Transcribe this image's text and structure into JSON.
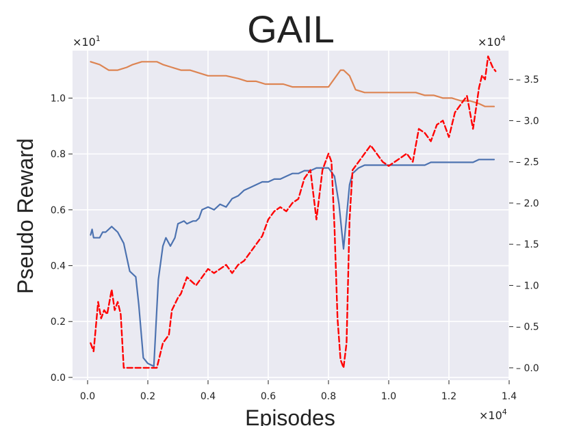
{
  "chart_data": {
    "type": "line",
    "title": "GAIL",
    "xlabel": "Episodes",
    "ylabel": "Pseudo Reward",
    "x_multiplier": "×10",
    "x_multiplier_exp": "4",
    "y_left_multiplier": "×10",
    "y_left_multiplier_exp": "1",
    "y_right_multiplier": "×10",
    "y_right_multiplier_exp": "4",
    "xlim": [
      -0.05,
      1.4
    ],
    "y_left_lim": [
      -0.01,
      1.17
    ],
    "y_right_lim": [
      -0.15,
      3.85
    ],
    "x_ticks": [
      0.0,
      0.2,
      0.4,
      0.6,
      0.8,
      1.0,
      1.2,
      1.4
    ],
    "x_tick_labels": [
      "0.0",
      "0.2",
      "0.4",
      "0.6",
      "0.8",
      "1.0",
      "1.2",
      "1.4"
    ],
    "y_left_ticks": [
      0.0,
      0.2,
      0.4,
      0.6,
      0.8,
      1.0
    ],
    "y_left_tick_labels": [
      "0.0",
      "0.2",
      "0.4",
      "0.6",
      "0.8",
      "1.0"
    ],
    "y_right_ticks": [
      0.0,
      0.5,
      1.0,
      1.5,
      2.0,
      2.5,
      3.0,
      3.5
    ],
    "y_right_tick_labels": [
      "0.0",
      "0.5",
      "1.0",
      "1.5",
      "2.0",
      "2.5",
      "3.0",
      "3.5"
    ],
    "grid": true,
    "background": "#eaeaf2",
    "series": [
      {
        "axis": "left",
        "color": "#dd8452",
        "style": "solid",
        "x": [
          0.01,
          0.04,
          0.07,
          0.1,
          0.13,
          0.15,
          0.18,
          0.2,
          0.23,
          0.25,
          0.28,
          0.31,
          0.34,
          0.37,
          0.4,
          0.43,
          0.46,
          0.5,
          0.53,
          0.56,
          0.59,
          0.62,
          0.65,
          0.68,
          0.71,
          0.74,
          0.77,
          0.8,
          0.82,
          0.84,
          0.85,
          0.87,
          0.89,
          0.92,
          0.95,
          0.98,
          1.0,
          1.03,
          1.06,
          1.09,
          1.12,
          1.15,
          1.18,
          1.21,
          1.24,
          1.27,
          1.3,
          1.32,
          1.35
        ],
        "y": [
          1.13,
          1.12,
          1.1,
          1.1,
          1.11,
          1.12,
          1.13,
          1.13,
          1.13,
          1.12,
          1.11,
          1.1,
          1.1,
          1.09,
          1.08,
          1.08,
          1.08,
          1.07,
          1.06,
          1.06,
          1.05,
          1.05,
          1.05,
          1.04,
          1.04,
          1.04,
          1.04,
          1.04,
          1.07,
          1.1,
          1.1,
          1.08,
          1.03,
          1.02,
          1.02,
          1.02,
          1.02,
          1.02,
          1.02,
          1.02,
          1.01,
          1.01,
          1.0,
          1.0,
          0.99,
          0.99,
          0.98,
          0.97,
          0.97
        ]
      },
      {
        "axis": "left",
        "color": "#4c72b0",
        "style": "solid",
        "x": [
          0.01,
          0.015,
          0.02,
          0.04,
          0.05,
          0.06,
          0.07,
          0.08,
          0.09,
          0.1,
          0.11,
          0.12,
          0.14,
          0.16,
          0.17,
          0.185,
          0.2,
          0.22,
          0.235,
          0.25,
          0.26,
          0.275,
          0.29,
          0.3,
          0.32,
          0.33,
          0.35,
          0.36,
          0.37,
          0.38,
          0.4,
          0.42,
          0.44,
          0.46,
          0.48,
          0.5,
          0.52,
          0.54,
          0.56,
          0.58,
          0.6,
          0.62,
          0.64,
          0.66,
          0.68,
          0.7,
          0.72,
          0.74,
          0.76,
          0.78,
          0.8,
          0.82,
          0.835,
          0.85,
          0.87,
          0.88,
          0.9,
          0.92,
          0.94,
          0.96,
          0.98,
          1.0,
          1.02,
          1.04,
          1.06,
          1.08,
          1.1,
          1.12,
          1.14,
          1.16,
          1.18,
          1.2,
          1.22,
          1.24,
          1.26,
          1.28,
          1.3,
          1.32,
          1.35
        ],
        "y": [
          0.51,
          0.53,
          0.5,
          0.5,
          0.52,
          0.52,
          0.53,
          0.54,
          0.53,
          0.52,
          0.5,
          0.48,
          0.38,
          0.36,
          0.26,
          0.07,
          0.05,
          0.04,
          0.35,
          0.47,
          0.5,
          0.47,
          0.5,
          0.55,
          0.56,
          0.55,
          0.56,
          0.56,
          0.57,
          0.6,
          0.61,
          0.6,
          0.62,
          0.61,
          0.64,
          0.65,
          0.67,
          0.68,
          0.69,
          0.7,
          0.7,
          0.71,
          0.71,
          0.72,
          0.73,
          0.73,
          0.74,
          0.74,
          0.75,
          0.75,
          0.75,
          0.72,
          0.62,
          0.46,
          0.69,
          0.73,
          0.75,
          0.76,
          0.76,
          0.76,
          0.76,
          0.76,
          0.76,
          0.76,
          0.76,
          0.76,
          0.76,
          0.76,
          0.77,
          0.77,
          0.77,
          0.77,
          0.77,
          0.77,
          0.77,
          0.77,
          0.78,
          0.78,
          0.78
        ]
      },
      {
        "axis": "right",
        "color": "#ff0000",
        "style": "dashed",
        "x": [
          0.01,
          0.02,
          0.035,
          0.045,
          0.055,
          0.065,
          0.08,
          0.09,
          0.1,
          0.11,
          0.12,
          0.13,
          0.15,
          0.17,
          0.19,
          0.21,
          0.23,
          0.25,
          0.27,
          0.28,
          0.3,
          0.31,
          0.33,
          0.36,
          0.38,
          0.4,
          0.42,
          0.44,
          0.46,
          0.48,
          0.5,
          0.52,
          0.54,
          0.56,
          0.58,
          0.6,
          0.62,
          0.64,
          0.66,
          0.68,
          0.7,
          0.72,
          0.74,
          0.76,
          0.78,
          0.79,
          0.8,
          0.81,
          0.82,
          0.83,
          0.84,
          0.85,
          0.86,
          0.87,
          0.88,
          0.9,
          0.92,
          0.94,
          0.96,
          0.98,
          1.0,
          1.02,
          1.04,
          1.06,
          1.08,
          1.1,
          1.12,
          1.14,
          1.16,
          1.18,
          1.2,
          1.22,
          1.24,
          1.26,
          1.28,
          1.3,
          1.31,
          1.32,
          1.33,
          1.345,
          1.355
        ],
        "y": [
          0.3,
          0.2,
          0.8,
          0.6,
          0.7,
          0.65,
          0.95,
          0.7,
          0.8,
          0.65,
          0.0,
          0.0,
          0.0,
          0.0,
          0.0,
          0.0,
          0.0,
          0.3,
          0.4,
          0.7,
          0.85,
          0.9,
          1.1,
          1.0,
          1.1,
          1.2,
          1.15,
          1.2,
          1.25,
          1.15,
          1.25,
          1.3,
          1.4,
          1.5,
          1.6,
          1.8,
          1.9,
          1.95,
          1.9,
          2.0,
          2.05,
          2.3,
          2.4,
          1.8,
          2.4,
          2.5,
          2.6,
          2.5,
          1.7,
          0.6,
          0.1,
          0.0,
          0.3,
          1.8,
          2.4,
          2.5,
          2.6,
          2.7,
          2.6,
          2.5,
          2.45,
          2.5,
          2.55,
          2.6,
          2.5,
          2.9,
          2.85,
          2.75,
          2.95,
          3.0,
          2.8,
          3.1,
          3.2,
          3.3,
          2.9,
          3.4,
          3.55,
          3.5,
          3.78,
          3.65,
          3.6
        ]
      }
    ]
  }
}
